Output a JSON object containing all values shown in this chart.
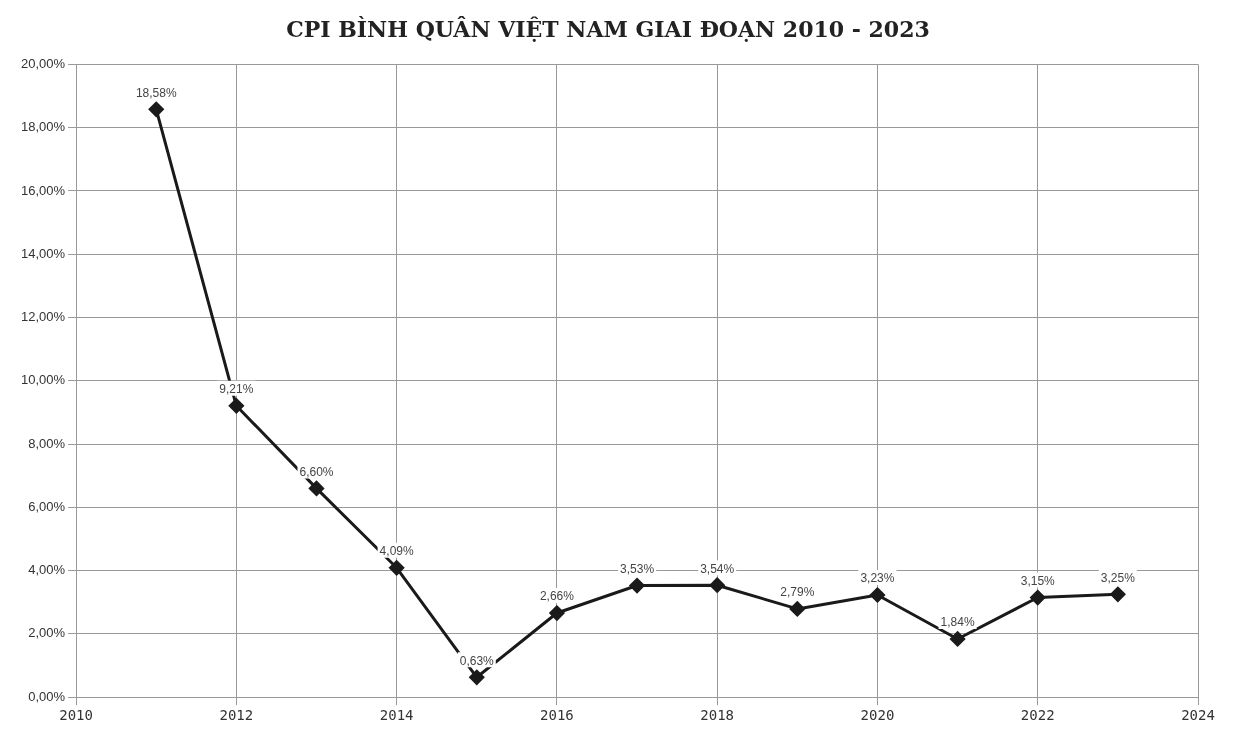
{
  "chart_data": {
    "type": "line",
    "title": "CPI BÌNH QUÂN VIỆT NAM GIAI ĐOẠN 2010 - 2023",
    "x": [
      2011,
      2012,
      2013,
      2014,
      2015,
      2016,
      2017,
      2018,
      2019,
      2020,
      2021,
      2022,
      2023
    ],
    "series": [
      {
        "color": "#1a1a1a",
        "values": [
          18.58,
          9.21,
          6.6,
          4.09,
          0.63,
          2.66,
          3.53,
          3.54,
          2.79,
          3.23,
          1.84,
          3.15,
          3.25
        ],
        "value_labels": [
          "18,58%",
          "9,21%",
          "6,60%",
          "4,09%",
          "0,63%",
          "2,66%",
          "3,53%",
          "3,54%",
          "2,79%",
          "3,23%",
          "1,84%",
          "3,15%",
          "3,25%"
        ]
      }
    ],
    "xlim": [
      2010,
      2024
    ],
    "xticks": [
      2010,
      2012,
      2014,
      2016,
      2018,
      2020,
      2022,
      2024
    ],
    "ylim": [
      0,
      20
    ],
    "yticks": [
      {
        "value": 0,
        "label": "0,00%"
      },
      {
        "value": 2,
        "label": "2,00%"
      },
      {
        "value": 4,
        "label": "4,00%"
      },
      {
        "value": 6,
        "label": "6,00%"
      },
      {
        "value": 8,
        "label": "8,00%"
      },
      {
        "value": 10,
        "label": "10,00%"
      },
      {
        "value": 12,
        "label": "12,00%"
      },
      {
        "value": 14,
        "label": "14,00%"
      },
      {
        "value": 16,
        "label": "16,00%"
      },
      {
        "value": 18,
        "label": "18,00%"
      },
      {
        "value": 20,
        "label": "20,00%"
      }
    ],
    "grid": true,
    "marker": "diamond",
    "line_style": "solid",
    "legend": false
  }
}
